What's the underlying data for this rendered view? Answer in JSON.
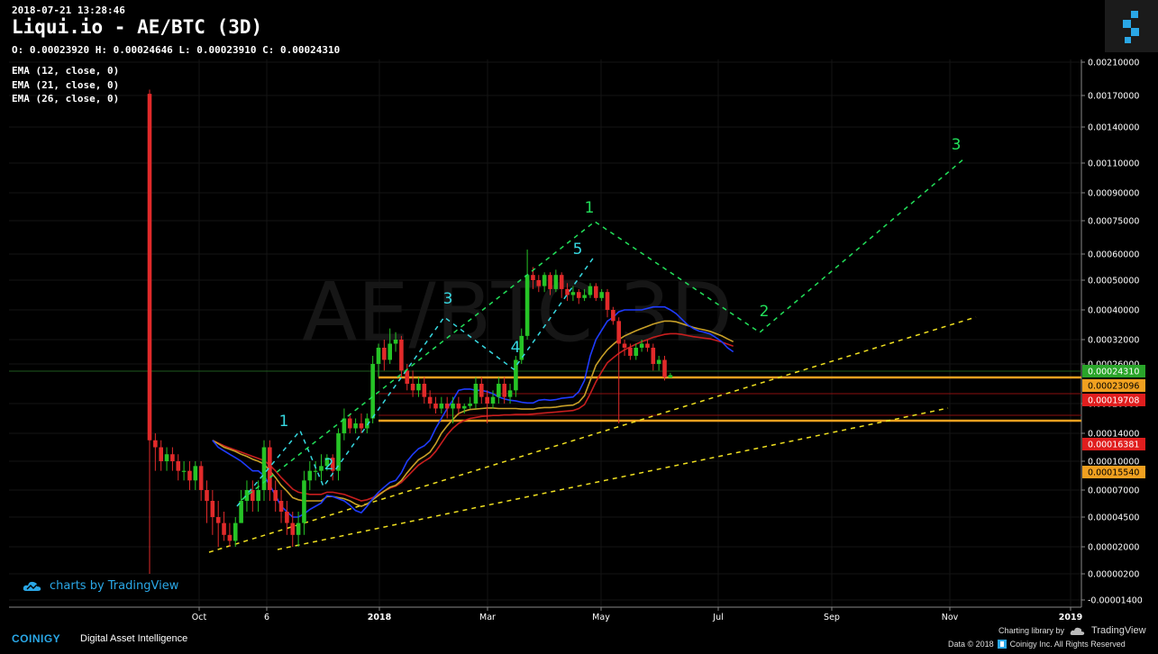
{
  "header": {
    "timestamp": "2018-07-21 13:28:46",
    "title": "Liqui.io - AE/BTC (3D)",
    "ohlc": "O: 0.00023920 H: 0.00024646 L: 0.00023910 C: 0.00024310",
    "watermark": "AE/BTC 3D"
  },
  "indicators": [
    {
      "label": "EMA (12, close, 0)",
      "color": "#1f3cff"
    },
    {
      "label": "EMA (21, close, 0)",
      "color": "#c8a028"
    },
    {
      "label": "EMA (26, close, 0)",
      "color": "#c81e1e"
    }
  ],
  "branding": {
    "tradingview": "charts by TradingView",
    "coinigy": "COINIGY",
    "tagline": "Digital Asset Intelligence",
    "charting_library": "Charting library by",
    "tv_name": "TradingView",
    "copyright": "Data © 2018",
    "copyright_tail": "Coinigy Inc. All Rights Reserved"
  },
  "colors": {
    "up": "#26c426",
    "down": "#e12a2a",
    "wave": "#36d8e0",
    "wave_big": "#22e05a",
    "trend": "#f0e020",
    "support": "#f0a020",
    "accent": "#2aa7e6"
  },
  "chart_data": {
    "type": "candlestick",
    "exchange": "Liqui.io",
    "pair": "AE/BTC",
    "timeframe": "3D",
    "y_ticks": [
      "0.00210000",
      "0.00170000",
      "0.00140000",
      "0.00110000",
      "0.00090000",
      "0.00075000",
      "0.00060000",
      "0.00050000",
      "0.00040000",
      "0.00032000",
      "0.00026000",
      "0.00020000",
      "0.00014000",
      "0.00010000",
      "0.00007000",
      "0.00004500",
      "0.00002000",
      "0.00000200",
      "-0.00001400"
    ],
    "x_ticks": [
      {
        "label": "Oct",
        "bold": false
      },
      {
        "label": "6",
        "bold": false
      },
      {
        "label": "2018",
        "bold": true
      },
      {
        "label": "Mar",
        "bold": false
      },
      {
        "label": "May",
        "bold": false
      },
      {
        "label": "Jul",
        "bold": false
      },
      {
        "label": "Sep",
        "bold": false
      },
      {
        "label": "Nov",
        "bold": false
      },
      {
        "label": "2019",
        "bold": true
      }
    ],
    "price_tags": [
      {
        "value": "0.00024310",
        "bg": "#2aa52a",
        "fg": "#ffffff"
      },
      {
        "value": "0.00023096",
        "bg": "#f0a020",
        "fg": "#000000"
      },
      {
        "value": "0.00019708",
        "bg": "#e01e1e",
        "fg": "#ffffff"
      },
      {
        "value": "0.00016381",
        "bg": "#e01e1e",
        "fg": "#ffffff"
      },
      {
        "value": "0.00015540",
        "bg": "#f0a020",
        "fg": "#000000"
      }
    ],
    "support_levels": [
      0.00023096,
      0.0001554
    ],
    "resistance_levels": [
      0.00019708,
      0.00016381
    ],
    "candles": [
      [
        0.00172,
        0.00013,
        0.00177,
        2e-06
      ],
      [
        0.00013,
        0.00012,
        0.00014,
        9e-05
      ],
      [
        0.00012,
        0.0001,
        0.00013,
        9e-05
      ],
      [
        0.0001,
        0.00011,
        0.00012,
        9e-05
      ],
      [
        0.00011,
        0.0001,
        0.00012,
        9e-05
      ],
      [
        0.0001,
        9e-05,
        0.00011,
        8e-05
      ],
      [
        9e-05,
        9e-05,
        0.0001,
        8e-05
      ],
      [
        9e-05,
        8e-05,
        0.0001,
        7e-05
      ],
      [
        8e-05,
        9.5e-05,
        0.0001,
        7e-05
      ],
      [
        9.5e-05,
        7e-05,
        0.0001,
        6e-05
      ],
      [
        7e-05,
        6e-05,
        8e-05,
        4e-05
      ],
      [
        6e-05,
        4.5e-05,
        7e-05,
        3e-05
      ],
      [
        4.5e-05,
        4e-05,
        6e-05,
        2e-05
      ],
      [
        4e-05,
        3e-05,
        5e-05,
        2.5e-05
      ],
      [
        3e-05,
        2.5e-05,
        4e-05,
        2e-05
      ],
      [
        2.5e-05,
        4e-05,
        4.5e-05,
        2e-05
      ],
      [
        4e-05,
        6e-05,
        7e-05,
        4e-05
      ],
      [
        6e-05,
        7e-05,
        8e-05,
        5e-05
      ],
      [
        7e-05,
        6e-05,
        8e-05,
        5e-05
      ],
      [
        6e-05,
        7e-05,
        8e-05,
        5e-05
      ],
      [
        7e-05,
        0.00012,
        0.00013,
        6e-05
      ],
      [
        0.00012,
        7e-05,
        0.00013,
        6e-05
      ],
      [
        7e-05,
        6e-05,
        8e-05,
        5e-05
      ],
      [
        6e-05,
        5e-05,
        7e-05,
        4e-05
      ],
      [
        5e-05,
        4e-05,
        6e-05,
        3e-05
      ],
      [
        4e-05,
        3e-05,
        5e-05,
        2e-05
      ],
      [
        3e-05,
        4e-05,
        5e-05,
        2e-05
      ],
      [
        4e-05,
        8e-05,
        9e-05,
        3e-05
      ],
      [
        8e-05,
        9e-05,
        0.0001,
        7e-05
      ],
      [
        9e-05,
        9e-05,
        0.0001,
        8e-05
      ],
      [
        9e-05,
        9.5e-05,
        0.00011,
        8e-05
      ],
      [
        9.5e-05,
        0.000105,
        0.00011,
        9e-05
      ],
      [
        0.000105,
        9e-05,
        0.00011,
        8e-05
      ],
      [
        9e-05,
        0.00014,
        0.00015,
        8e-05
      ],
      [
        0.00014,
        0.00017,
        0.00019,
        0.00013
      ],
      [
        0.00017,
        0.00015,
        0.00018,
        0.00014
      ],
      [
        0.00015,
        0.00016,
        0.00017,
        0.00014
      ],
      [
        0.00016,
        0.00015,
        0.00018,
        0.00014
      ],
      [
        0.00015,
        0.00017,
        0.00018,
        0.00014
      ],
      [
        0.00017,
        0.00026,
        0.00028,
        0.00016
      ],
      [
        0.00026,
        0.0003,
        0.00031,
        0.00024
      ],
      [
        0.0003,
        0.00027,
        0.00032,
        0.00025
      ],
      [
        0.00027,
        0.00031,
        0.00035,
        0.00026
      ],
      [
        0.00031,
        0.00032,
        0.00034,
        0.00029
      ],
      [
        0.00032,
        0.00025,
        0.00033,
        0.00024
      ],
      [
        0.00025,
        0.00023,
        0.00026,
        0.00022
      ],
      [
        0.00023,
        0.00022,
        0.00025,
        0.00021
      ],
      [
        0.00022,
        0.00023,
        0.00024,
        0.00021
      ],
      [
        0.00023,
        0.00021,
        0.00024,
        0.0002
      ],
      [
        0.00021,
        0.0002,
        0.00022,
        0.00019
      ],
      [
        0.0002,
        0.00019,
        0.00021,
        0.00018
      ],
      [
        0.00019,
        0.0002,
        0.00021,
        0.00018
      ],
      [
        0.0002,
        0.00019,
        0.00021,
        0.00017
      ],
      [
        0.00019,
        0.0002,
        0.00021,
        0.00016
      ],
      [
        0.0002,
        0.00019,
        0.00021,
        0.00018
      ],
      [
        0.00019,
        0.000195,
        0.0002,
        0.00018
      ],
      [
        0.000195,
        0.0002,
        0.00021,
        0.00019
      ],
      [
        0.0002,
        0.00023,
        0.00024,
        0.00019
      ],
      [
        0.00023,
        0.00021,
        0.00024,
        0.0002
      ],
      [
        0.00021,
        0.0002,
        0.00022,
        0.00016
      ],
      [
        0.0002,
        0.00021,
        0.00022,
        0.00019
      ],
      [
        0.00021,
        0.00023,
        0.00024,
        0.0002
      ],
      [
        0.00023,
        0.00021,
        0.00024,
        0.0002
      ],
      [
        0.00021,
        0.00022,
        0.00023,
        0.0002
      ],
      [
        0.00022,
        0.00027,
        0.00028,
        0.00021
      ],
      [
        0.00027,
        0.00033,
        0.00035,
        0.00026
      ],
      [
        0.00033,
        0.00052,
        0.00062,
        0.00032
      ],
      [
        0.00052,
        0.0005,
        0.00055,
        0.00047
      ],
      [
        0.0005,
        0.00048,
        0.00052,
        0.00046
      ],
      [
        0.00048,
        0.00052,
        0.00053,
        0.00046
      ],
      [
        0.00052,
        0.00047,
        0.00053,
        0.00045
      ],
      [
        0.00047,
        0.00052,
        0.00054,
        0.00046
      ],
      [
        0.00052,
        0.00047,
        0.00053,
        0.00044
      ],
      [
        0.00047,
        0.00045,
        0.00049,
        0.00043
      ],
      [
        0.00045,
        0.00046,
        0.00048,
        0.00043
      ],
      [
        0.00046,
        0.00044,
        0.00047,
        0.00042
      ],
      [
        0.00044,
        0.00045,
        0.00047,
        0.00043
      ],
      [
        0.00045,
        0.00048,
        0.00049,
        0.00044
      ],
      [
        0.00048,
        0.00044,
        0.00049,
        0.00043
      ],
      [
        0.00044,
        0.00046,
        0.00047,
        0.00043
      ],
      [
        0.00046,
        0.0004,
        0.00047,
        0.00038
      ],
      [
        0.0004,
        0.00037,
        0.00041,
        0.00036
      ],
      [
        0.00037,
        0.00031,
        0.00038,
        0.00016
      ],
      [
        0.00031,
        0.0003,
        0.00032,
        0.00028
      ],
      [
        0.0003,
        0.00028,
        0.00031,
        0.00027
      ],
      [
        0.00028,
        0.0003,
        0.00031,
        0.00027
      ],
      [
        0.0003,
        0.00031,
        0.00032,
        0.00029
      ],
      [
        0.00031,
        0.0003,
        0.00032,
        0.00029
      ],
      [
        0.0003,
        0.00026,
        0.00031,
        0.00025
      ],
      [
        0.00026,
        0.00027,
        0.00028,
        0.00025
      ],
      [
        0.00027,
        0.00024,
        0.00028,
        0.000235
      ],
      [
        0.0002392,
        0.0002431,
        0.00024646,
        0.0002391
      ]
    ],
    "ema12": [
      0.00013,
      0.00012,
      0.000115,
      0.00011,
      0.000105,
      0.0001,
      9.5e-05,
      9e-05,
      9e-05,
      8.5e-05,
      7.5e-05,
      6.5e-05,
      5.5e-05,
      5e-05,
      4.5e-05,
      4.5e-05,
      4.8e-05,
      5.2e-05,
      5.5e-05,
      5.8e-05,
      6.5e-05,
      6.4e-05,
      6.2e-05,
      6e-05,
      5.6e-05,
      5.1e-05,
      4.9e-05,
      5.5e-05,
      6.2e-05,
      6.8e-05,
      7.3e-05,
      7.8e-05,
      8e-05,
      8.8e-05,
      0.0001,
      0.00011,
      0.000118,
      0.000122,
      0.00013,
      0.00015,
      0.00017,
      0.00019,
      0.000205,
      0.00022,
      0.000222,
      0.000222,
      0.00022,
      0.00022,
      0.000218,
      0.000215,
      0.00021,
      0.000207,
      0.000205,
      0.000204,
      0.000202,
      0.000201,
      0.000201,
      0.000205,
      0.000206,
      0.000205,
      0.000206,
      0.000208,
      0.000209,
      0.00021,
      0.000218,
      0.000235,
      0.00028,
      0.00032,
      0.000345,
      0.00037,
      0.00038,
      0.000395,
      0.0004,
      0.0004,
      0.0004,
      0.0004,
      0.000405,
      0.00041,
      0.00041,
      0.00041,
      0.0004,
      0.00039,
      0.000375,
      0.00036,
      0.00035,
      0.000343,
      0.00034,
      0.000335,
      0.000325,
      0.000315,
      0.0003,
      0.00029
    ],
    "ema21": [
      0.00013,
      0.000125,
      0.00012,
      0.000117,
      0.000114,
      0.00011,
      0.000107,
      0.000103,
      0.0001,
      9.7e-05,
      9e-05,
      8.3e-05,
      7.5e-05,
      6.9e-05,
      6.3e-05,
      6.1e-05,
      6e-05,
      6e-05,
      6e-05,
      6e-05,
      6.4e-05,
      6.4e-05,
      6.3e-05,
      6.2e-05,
      6e-05,
      5.7e-05,
      5.5e-05,
      5.7e-05,
      6.1e-05,
      6.5e-05,
      6.9e-05,
      7.3e-05,
      7.5e-05,
      8e-05,
      8.8e-05,
      9.5e-05,
      0.000102,
      0.000107,
      0.000113,
      0.000125,
      0.00014,
      0.000155,
      0.000168,
      0.00018,
      0.000185,
      0.000188,
      0.000189,
      0.00019,
      0.000191,
      0.000191,
      0.00019,
      0.00019,
      0.00019,
      0.00019,
      0.000189,
      0.000189,
      0.000189,
      0.000191,
      0.000192,
      0.000192,
      0.000193,
      0.000195,
      0.000196,
      0.000197,
      0.000202,
      0.000212,
      0.000235,
      0.000258,
      0.000277,
      0.000295,
      0.000308,
      0.00032,
      0.00033,
      0.000337,
      0.000344,
      0.00035,
      0.000356,
      0.000362,
      0.000366,
      0.00037,
      0.00037,
      0.000368,
      0.000363,
      0.000358,
      0.000353,
      0.000349,
      0.000346,
      0.000342,
      0.000336,
      0.00033,
      0.000322,
      0.000315
    ],
    "ema26": [
      0.00013,
      0.000126,
      0.000122,
      0.000119,
      0.000116,
      0.000113,
      0.00011,
      0.000107,
      0.000104,
      0.000101,
      9.6e-05,
      9e-05,
      8.3e-05,
      7.7e-05,
      7.1e-05,
      6.8e-05,
      6.7e-05,
      6.6e-05,
      6.6e-05,
      6.6e-05,
      6.8e-05,
      6.8e-05,
      6.7e-05,
      6.6e-05,
      6.4e-05,
      6.2e-05,
      6e-05,
      6.1e-05,
      6.3e-05,
      6.6e-05,
      6.9e-05,
      7.2e-05,
      7.4e-05,
      7.8e-05,
      8.4e-05,
      9e-05,
      9.6e-05,
      0.0001,
      0.000105,
      0.000114,
      0.000126,
      0.000138,
      0.00015,
      0.00016,
      0.000166,
      0.00017,
      0.000172,
      0.000174,
      0.000175,
      0.000176,
      0.000176,
      0.000177,
      0.000177,
      0.000178,
      0.000178,
      0.000178,
      0.000179,
      0.00018,
      0.000181,
      0.000182,
      0.000183,
      0.000184,
      0.000185,
      0.000186,
      0.00019,
      0.000198,
      0.000215,
      0.000233,
      0.000248,
      0.000263,
      0.000275,
      0.000286,
      0.000295,
      0.000302,
      0.000309,
      0.000315,
      0.00032,
      0.000326,
      0.00033,
      0.000334,
      0.000336,
      0.000336,
      0.000334,
      0.000331,
      0.000328,
      0.000326,
      0.000324,
      0.000322,
      0.000318,
      0.000314,
      0.000309,
      0.000304
    ],
    "wave_labels_small": [
      "1",
      "2",
      "3",
      "4",
      "5"
    ],
    "wave_labels_big": [
      "1",
      "2",
      "3"
    ]
  }
}
